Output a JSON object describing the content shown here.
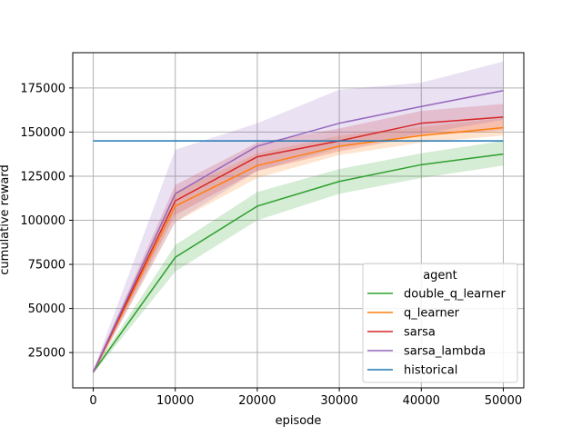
{
  "chart_data": {
    "type": "line",
    "xlabel": "episode",
    "ylabel": "cumulative reward",
    "xlim": [
      -2500,
      52500
    ],
    "ylim": [
      5000,
      195000
    ],
    "x_ticks": [
      0,
      10000,
      20000,
      30000,
      40000,
      50000
    ],
    "x_tick_labels": [
      "0",
      "10000",
      "20000",
      "30000",
      "40000",
      "50000"
    ],
    "y_ticks": [
      25000,
      50000,
      75000,
      100000,
      125000,
      150000,
      175000
    ],
    "y_tick_labels": [
      "25000",
      "50000",
      "75000",
      "100000",
      "125000",
      "150000",
      "175000"
    ],
    "grid": true,
    "legend": {
      "title": "agent",
      "placement": "lower-right"
    },
    "x": [
      0,
      10000,
      20000,
      30000,
      40000,
      50000
    ],
    "series": [
      {
        "name": "double_q_learner",
        "color": "#2ca02c",
        "values": [
          14000,
          79000,
          108000,
          122000,
          131500,
          137500
        ],
        "lower": [
          13000,
          71000,
          100000,
          115000,
          124000,
          131000
        ],
        "upper": [
          15000,
          86000,
          116000,
          129000,
          138000,
          145000
        ]
      },
      {
        "name": "q_learner",
        "color": "#ff7f0e",
        "values": [
          14000,
          108000,
          131000,
          142000,
          148000,
          152500
        ],
        "lower": [
          13000,
          99000,
          124000,
          137000,
          144000,
          148000
        ],
        "upper": [
          15000,
          116000,
          138000,
          148000,
          153000,
          158000
        ]
      },
      {
        "name": "sarsa",
        "color": "#d62728",
        "values": [
          14000,
          111000,
          136000,
          145000,
          155000,
          158500
        ],
        "lower": [
          13000,
          103000,
          128000,
          139000,
          148000,
          151000
        ],
        "upper": [
          15000,
          120000,
          144000,
          152000,
          162000,
          166000
        ]
      },
      {
        "name": "sarsa_lambda",
        "color": "#9467bd",
        "values": [
          14000,
          115000,
          142000,
          155000,
          164500,
          173500
        ],
        "lower": [
          13000,
          99000,
          128000,
          141000,
          149000,
          157000
        ],
        "upper": [
          15000,
          140000,
          155000,
          174000,
          178000,
          190000
        ]
      },
      {
        "name": "historical",
        "color": "#1f77b4",
        "values": [
          145000,
          145000,
          145000,
          145000,
          145000,
          145000
        ]
      }
    ]
  }
}
